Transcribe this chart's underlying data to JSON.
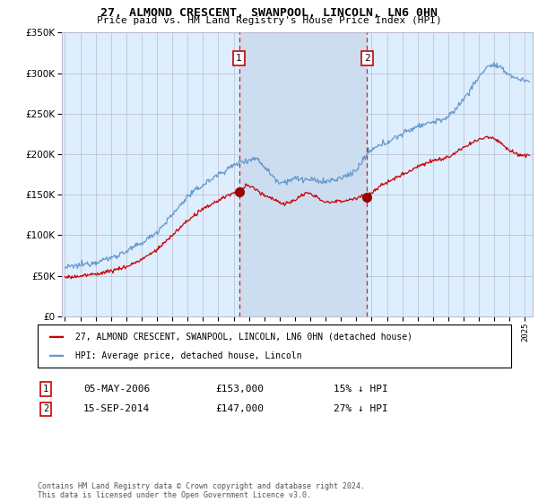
{
  "title": "27, ALMOND CRESCENT, SWANPOOL, LINCOLN, LN6 0HN",
  "subtitle": "Price paid vs. HM Land Registry's House Price Index (HPI)",
  "legend_label_red": "27, ALMOND CRESCENT, SWANPOOL, LINCOLN, LN6 0HN (detached house)",
  "legend_label_blue": "HPI: Average price, detached house, Lincoln",
  "transaction1_date": "05-MAY-2006",
  "transaction1_price": 153000,
  "transaction1_label": "15% ↓ HPI",
  "transaction2_date": "15-SEP-2014",
  "transaction2_price": 147000,
  "transaction2_label": "27% ↓ HPI",
  "footnote": "Contains HM Land Registry data © Crown copyright and database right 2024.\nThis data is licensed under the Open Government Licence v3.0.",
  "vline1_x": 2006.35,
  "vline2_x": 2014.71,
  "ylim": [
    0,
    350000
  ],
  "xlim_start": 1994.8,
  "xlim_end": 2025.5,
  "background_color": "#ffffff",
  "plot_bg_color": "#ddeeff",
  "grid_color": "#bbbbcc",
  "red_color": "#cc0000",
  "blue_color": "#6699cc",
  "vline_color": "#cc2222",
  "marker_color": "#990000",
  "box_color": "#cc0000",
  "span_color": "#ccddf0"
}
